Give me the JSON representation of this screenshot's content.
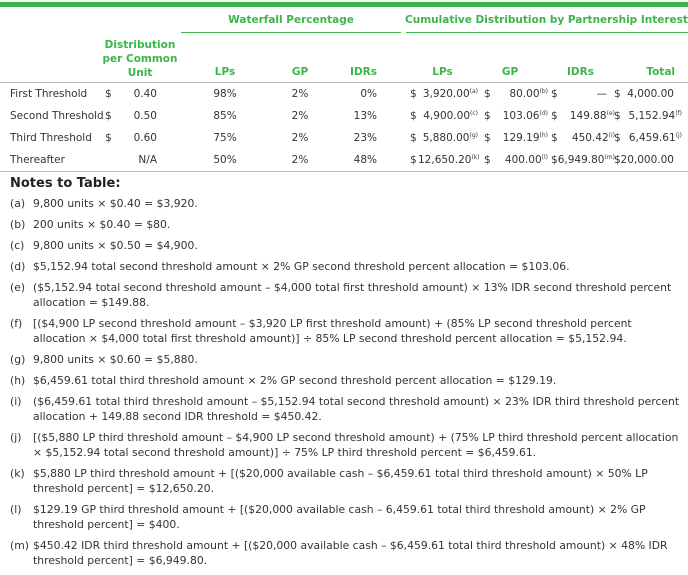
{
  "header": {
    "group_waterfall": "Waterfall Percentage",
    "group_cumulative": "Cumulative Distribution by Partnership Interest",
    "col_distribution": "Distribution per Common Unit",
    "col_distribution_lines": [
      "Distribution",
      "per Common",
      "Unit"
    ],
    "cols": [
      "LPs",
      "GP",
      "IDRs",
      "LPs",
      "GP",
      "IDRs",
      "Total"
    ]
  },
  "colors": {
    "accent": "#3cb54a"
  },
  "rows": [
    {
      "label": "First Threshold",
      "cur": "$",
      "dist": "0.40",
      "lp_pct": "98%",
      "gp_pct": "2%",
      "idr_pct": "0%",
      "lp_cur": "$",
      "lp_amt": "3,920.00",
      "lp_note": "(a)",
      "gp_cur": "$",
      "gp_amt": "80.00",
      "gp_note": "(b)",
      "idr_cur": "$",
      "idr_amt": "—",
      "idr_note": "",
      "tot_cur": "$",
      "tot_amt": "4,000.00",
      "tot_note": ""
    },
    {
      "label": "Second Threshold",
      "cur": "$",
      "dist": "0.50",
      "lp_pct": "85%",
      "gp_pct": "2%",
      "idr_pct": "13%",
      "lp_cur": "$",
      "lp_amt": "4,900.00",
      "lp_note": "(c)",
      "gp_cur": "$",
      "gp_amt": "103.06",
      "gp_note": "(d)",
      "idr_cur": "$",
      "idr_amt": "149.88",
      "idr_note": "(e)",
      "tot_cur": "$",
      "tot_amt": "5,152.94",
      "tot_note": "(f)"
    },
    {
      "label": "Third Threshold",
      "cur": "$",
      "dist": "0.60",
      "lp_pct": "75%",
      "gp_pct": "2%",
      "idr_pct": "23%",
      "lp_cur": "$",
      "lp_amt": "5,880.00",
      "lp_note": "(g)",
      "gp_cur": "$",
      "gp_amt": "129.19",
      "gp_note": "(h)",
      "idr_cur": "$",
      "idr_amt": "450.42",
      "idr_note": "(i)",
      "tot_cur": "$",
      "tot_amt": "6,459.61",
      "tot_note": "(j)"
    },
    {
      "label": "Thereafter",
      "cur": "",
      "dist": "N/A",
      "lp_pct": "50%",
      "gp_pct": "2%",
      "idr_pct": "48%",
      "lp_cur": "$",
      "lp_amt": "12,650.20",
      "lp_note": "(k)",
      "gp_cur": "$",
      "gp_amt": "400.00",
      "gp_note": "(l)",
      "idr_cur": "$",
      "idr_amt": "6,949.80",
      "idr_note": "(m)",
      "tot_cur": "$",
      "tot_amt": "20,000.00",
      "tot_note": ""
    }
  ],
  "notes_title": "Notes to Table:",
  "notes": [
    {
      "label": "(a)",
      "text": "9,800 units × $0.40 = $3,920."
    },
    {
      "label": "(b)",
      "text": "200 units × $0.40 = $80."
    },
    {
      "label": "(c)",
      "text": "9,800 units × $0.50 = $4,900."
    },
    {
      "label": "(d)",
      "text": "$5,152.94 total second threshold amount × 2% GP second threshold percent allocation = $103.06."
    },
    {
      "label": "(e)",
      "text": "($5,152.94 total second threshold amount – $4,000 total first threshold amount) × 13% IDR second threshold percent allocation = $149.88."
    },
    {
      "label": "(f)",
      "text": "[($4,900 LP second threshold amount – $3,920 LP first threshold amount) + (85% LP second threshold percent allocation × $4,000 total first threshold amount)] ÷ 85% LP second threshold percent allocation = $5,152.94."
    },
    {
      "label": "(g)",
      "text": "9,800 units × $0.60 = $5,880."
    },
    {
      "label": "(h)",
      "text": "$6,459.61 total third threshold amount × 2% GP second threshold percent allocation = $129.19."
    },
    {
      "label": "(i)",
      "text": "($6,459.61 total third threshold amount – $5,152.94 total second threshold amount) × 23% IDR third threshold percent allocation + 149.88 second IDR threshold = $450.42."
    },
    {
      "label": "(j)",
      "text": "[($5,880 LP third threshold amount – $4,900 LP second threshold amount) + (75% LP third threshold percent allocation × $5,152.94 total second threshold amount)] ÷ 75% LP third threshold percent = $6,459.61."
    },
    {
      "label": "(k)",
      "text": "$5,880 LP third threshold amount + [($20,000 available cash – $6,459.61 total third threshold amount) × 50% LP threshold percent] = $12,650.20."
    },
    {
      "label": "(l)",
      "text": "$129.19 GP third threshold amount + [($20,000 available cash – 6,459.61 total third threshold amount) × 2% GP threshold percent] = $400."
    },
    {
      "label": "(m)",
      "text": "$450.42 IDR third threshold amount + [($20,000 available cash – $6,459.61 total third threshold amount) × 48% IDR threshold percent] = $6,949.80."
    }
  ]
}
